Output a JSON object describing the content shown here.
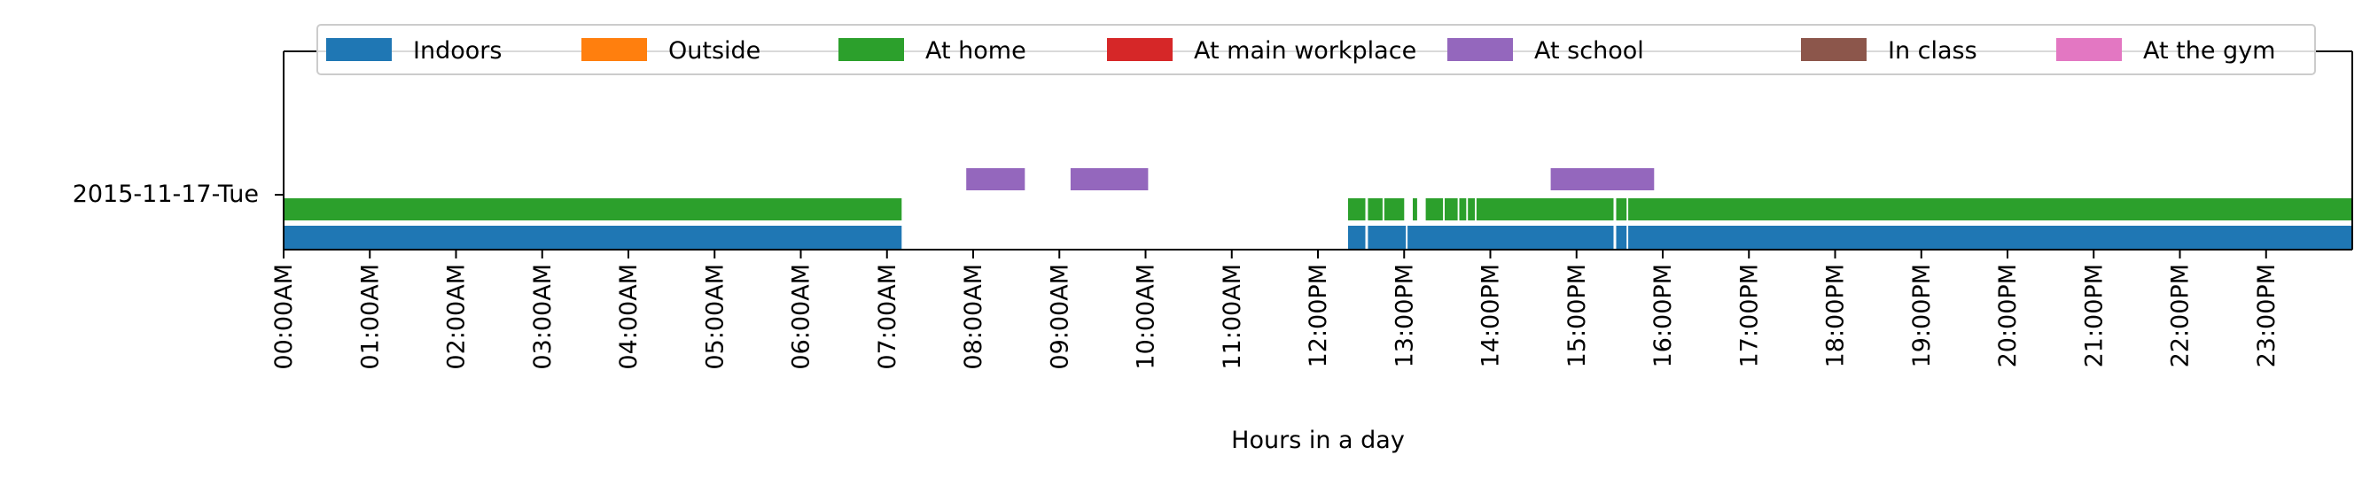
{
  "chart_data": {
    "type": "timeline",
    "xlabel": "Hours in a day",
    "ylabel": "",
    "title": "",
    "day_label": "2015-11-17-Tue",
    "xlim_hours": [
      0,
      24
    ],
    "x_tick_labels": [
      "00:00AM",
      "01:00AM",
      "02:00AM",
      "03:00AM",
      "04:00AM",
      "05:00AM",
      "06:00AM",
      "07:00AM",
      "08:00AM",
      "09:00AM",
      "10:00AM",
      "11:00AM",
      "12:00PM",
      "13:00PM",
      "14:00PM",
      "15:00PM",
      "16:00PM",
      "17:00PM",
      "18:00PM",
      "19:00PM",
      "20:00PM",
      "21:00PM",
      "22:00PM",
      "23:00PM"
    ],
    "legend": {
      "placement": "top-center",
      "entries": [
        {
          "label": "Indoors",
          "color": "#1f77b4"
        },
        {
          "label": "Outside",
          "color": "#ff7f0e"
        },
        {
          "label": "At home",
          "color": "#2ca02c"
        },
        {
          "label": "At main workplace",
          "color": "#d62728"
        },
        {
          "label": "At school",
          "color": "#9467bd"
        },
        {
          "label": "In class",
          "color": "#8c564b"
        },
        {
          "label": "At the gym",
          "color": "#e377c2"
        }
      ]
    },
    "series": [
      {
        "name": "Indoors",
        "color": "#1f77b4",
        "intervals": [
          [
            0.0,
            7.17
          ],
          [
            12.35,
            12.55
          ],
          [
            12.58,
            13.02
          ],
          [
            13.04,
            15.43
          ],
          [
            15.46,
            15.58
          ],
          [
            15.6,
            24.0
          ]
        ]
      },
      {
        "name": "At home",
        "color": "#2ca02c",
        "intervals": [
          [
            0.0,
            7.17
          ],
          [
            12.35,
            12.55
          ],
          [
            12.58,
            12.75
          ],
          [
            12.77,
            13.0
          ],
          [
            13.1,
            13.15
          ],
          [
            13.25,
            13.45
          ],
          [
            13.47,
            13.62
          ],
          [
            13.64,
            13.72
          ],
          [
            13.74,
            13.82
          ],
          [
            13.84,
            15.43
          ],
          [
            15.46,
            15.58
          ],
          [
            15.6,
            24.0
          ]
        ]
      },
      {
        "name": "At school",
        "color": "#9467bd",
        "intervals": [
          [
            7.92,
            8.6
          ],
          [
            9.13,
            10.03
          ],
          [
            14.7,
            15.9
          ]
        ]
      }
    ]
  }
}
